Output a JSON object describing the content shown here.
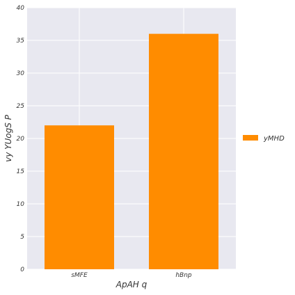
{
  "chart_data": {
    "type": "bar",
    "categories": [
      "sMFE",
      "hBnp"
    ],
    "series": [
      {
        "name": "yMHD",
        "values": [
          22,
          36
        ],
        "color": "#ff8c00"
      }
    ],
    "xlabel": "ApAH q",
    "ylabel": "vy YUogS P",
    "ylim": [
      0,
      40
    ],
    "yticks": [
      0,
      5,
      10,
      15,
      20,
      25,
      30,
      35,
      40
    ],
    "grid": true,
    "legend": "right",
    "background": "#e8e8f0"
  }
}
